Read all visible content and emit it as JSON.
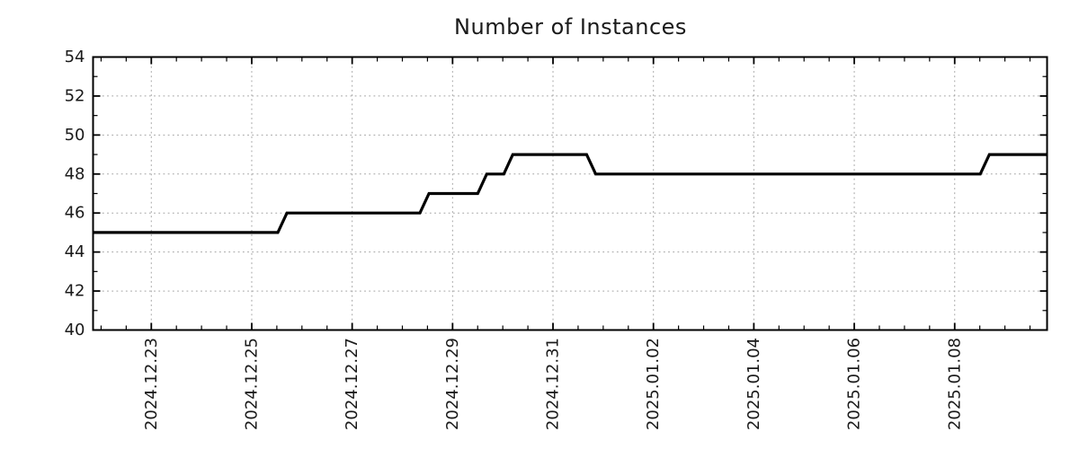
{
  "page": {
    "title": "Number of Instances"
  },
  "chart_data": {
    "type": "line",
    "title": "Number of Instances",
    "x_unit": "days since 2024.12.23",
    "x_axis": {
      "min": -1.16,
      "max": 17.84,
      "major_tick_interval": 2,
      "minor_tick_interval": 0.5,
      "major_ticks": [
        {
          "pos": 0,
          "label": "2024.12.23"
        },
        {
          "pos": 2,
          "label": "2024.12.25"
        },
        {
          "pos": 4,
          "label": "2024.12.27"
        },
        {
          "pos": 6,
          "label": "2024.12.29"
        },
        {
          "pos": 8,
          "label": "2024.12.31"
        },
        {
          "pos": 10,
          "label": "2025.01.02"
        },
        {
          "pos": 12,
          "label": "2025.01.04"
        },
        {
          "pos": 14,
          "label": "2025.01.06"
        },
        {
          "pos": 16,
          "label": "2025.01.08"
        }
      ]
    },
    "y_axis": {
      "min": 40,
      "max": 54,
      "major_tick_interval": 2,
      "minor_tick_interval": 1,
      "tick_labels": [
        "40",
        "42",
        "44",
        "46",
        "48",
        "50",
        "52",
        "54"
      ]
    },
    "grid": {
      "show": true,
      "color": "#a3a3a3",
      "style": "dotted"
    },
    "legend": {
      "show": false
    },
    "series": [
      {
        "name": "instances",
        "color": "#000000",
        "line_width": 3.2,
        "points": [
          [
            -1.16,
            45
          ],
          [
            2.52,
            45
          ],
          [
            2.7,
            46
          ],
          [
            5.35,
            46
          ],
          [
            5.53,
            47
          ],
          [
            6.5,
            47
          ],
          [
            6.68,
            48
          ],
          [
            7.02,
            48
          ],
          [
            7.2,
            49
          ],
          [
            8.67,
            49
          ],
          [
            8.85,
            48
          ],
          [
            16.51,
            48
          ],
          [
            16.69,
            49
          ],
          [
            17.84,
            49
          ]
        ]
      }
    ]
  }
}
